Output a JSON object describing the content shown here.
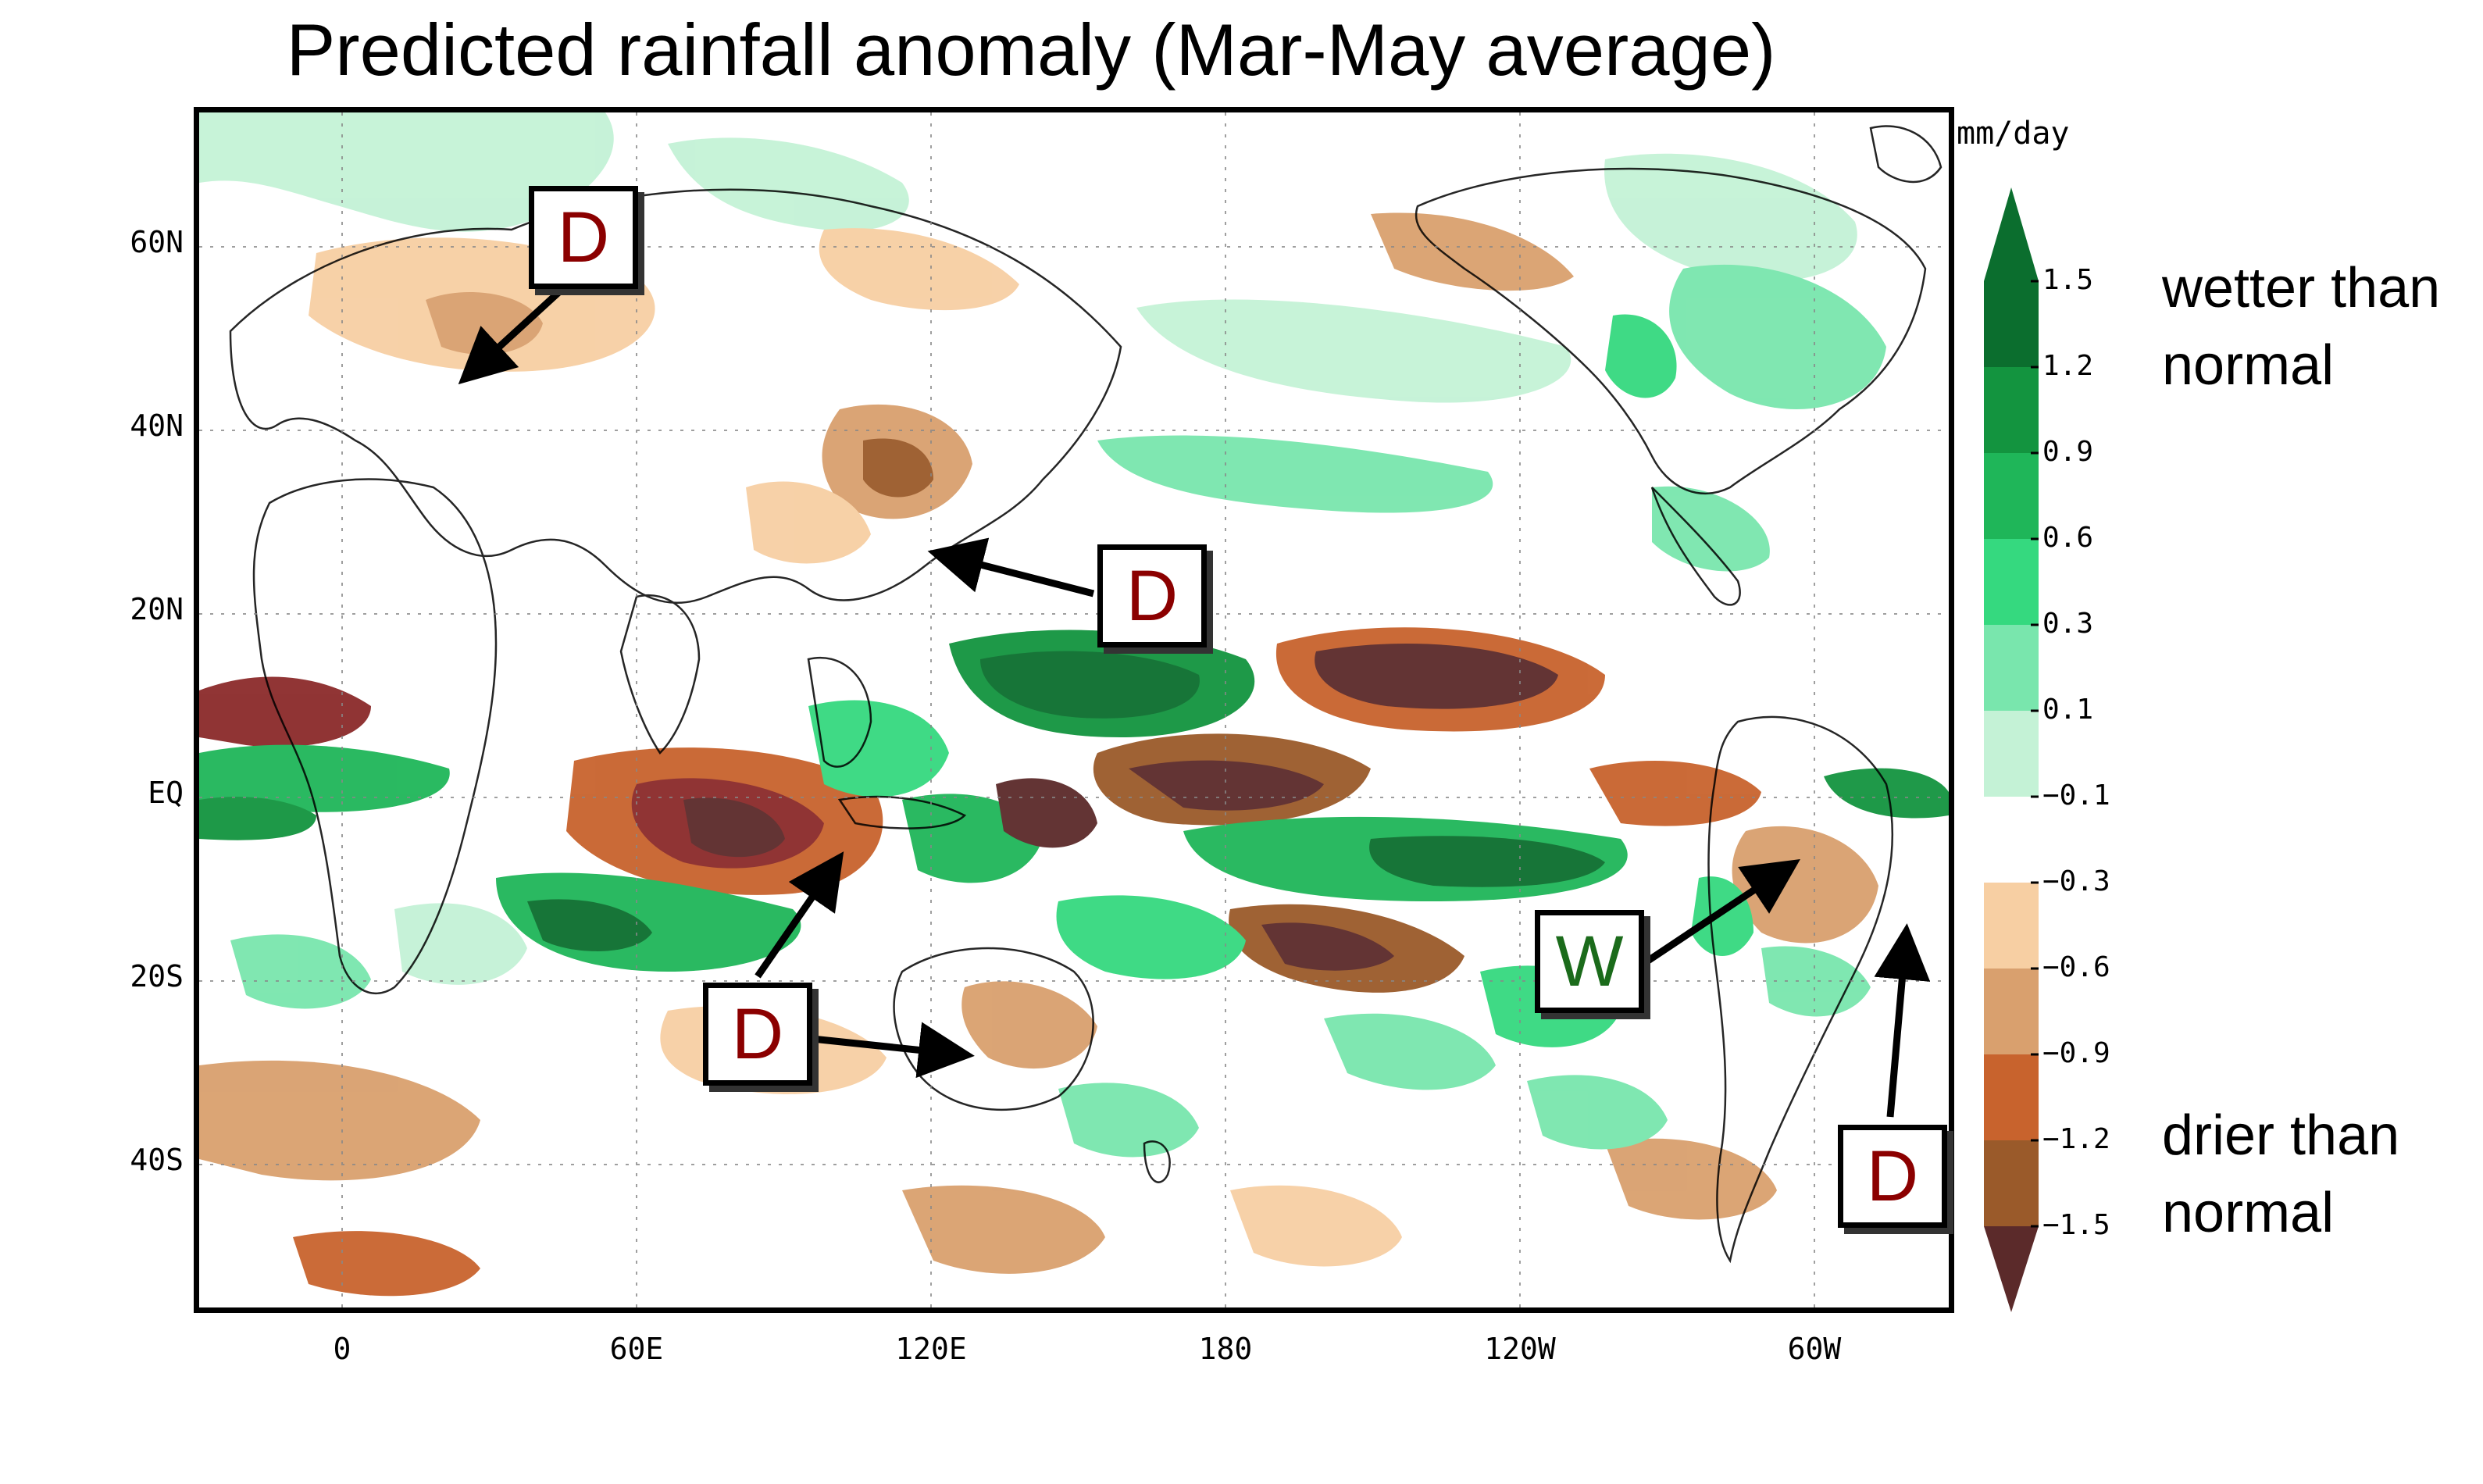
{
  "title": "Predicted rainfall anomaly (Mar-May average)",
  "axes": {
    "latitude_labels": [
      "60N",
      "40N",
      "20N",
      "EQ",
      "20S",
      "40S"
    ],
    "longitude_labels": [
      "0",
      "60E",
      "120E",
      "180",
      "120W",
      "60W"
    ]
  },
  "colorbar": {
    "units": "mm/day",
    "levels": [
      "1.5",
      "1.2",
      "0.9",
      "0.6",
      "0.3",
      "0.1",
      "−0.1",
      "−0.3",
      "−0.6",
      "−0.9",
      "−1.2",
      "−1.5"
    ],
    "colors_wet_to_dry": [
      "#0b6e2e",
      "#13943f",
      "#1fb659",
      "#35d97f",
      "#79e6ad",
      "#c4f2d6",
      "#ffffff",
      "#f7cfa3",
      "#d9a06e",
      "#c8632d",
      "#9a5a2a",
      "#8b2a2a",
      "#5b2a2a"
    ],
    "wetter_label": "wetter than normal",
    "drier_label": "drier than normal"
  },
  "annotations": [
    {
      "label": "D",
      "region": "Europe",
      "color": "#8b0000"
    },
    {
      "label": "D",
      "region": "East China",
      "color": "#8b0000"
    },
    {
      "label": "D",
      "region": "Indian Ocean / Sumatra",
      "color": "#8b0000"
    },
    {
      "label": "D",
      "region": "Australia",
      "color": "#8b0000"
    },
    {
      "label": "W",
      "region": "Northern South America",
      "color": "#1b6b1b"
    },
    {
      "label": "D",
      "region": "Southeast Brazil",
      "color": "#8b0000"
    }
  ]
}
